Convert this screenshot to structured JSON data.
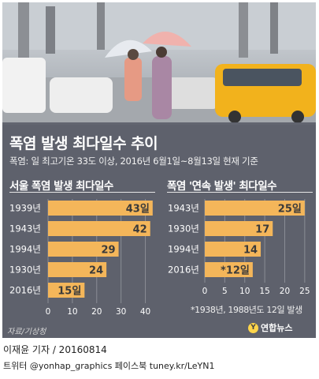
{
  "title": "폭염 발생 최다일수 추이",
  "subtitle": "폭염: 일 최고기온 33도 이상, 2016년 6월1일~8월13일 현재 기준",
  "colors": {
    "bar": "#f4b65a",
    "panel": "#5c606c",
    "text": "#ffffff",
    "logo": "#ffd54a"
  },
  "chart_data": [
    {
      "type": "bar",
      "orientation": "horizontal",
      "title": "서울 폭염 발생 최다일수",
      "categories": [
        "1939년",
        "1943년",
        "1994년",
        "1930년",
        "2016년"
      ],
      "values": [
        43,
        42,
        29,
        24,
        15
      ],
      "value_labels": [
        "43일",
        "42",
        "29",
        "24",
        "15일"
      ],
      "xlim": [
        0,
        45
      ],
      "xticks": [
        "0",
        "10",
        "20",
        "30",
        "40"
      ],
      "grid": true
    },
    {
      "type": "bar",
      "orientation": "horizontal",
      "title": "폭염 '연속 발생' 최다일수",
      "categories": [
        "1943년",
        "1930년",
        "1994년",
        "2016년"
      ],
      "values": [
        25,
        17,
        14,
        12
      ],
      "value_labels": [
        "25일",
        "17",
        "14",
        "*12일"
      ],
      "xlim": [
        0,
        27
      ],
      "xticks": [
        "0",
        "5",
        "10",
        "15",
        "20",
        "25"
      ],
      "grid": true,
      "footnote": "*1938년, 1988년도 12일 발생"
    }
  ],
  "source": "자료/기상청",
  "logo_text": "연합뉴스",
  "byline": "이재윤 기자 / 20160814",
  "social": "트위터 @yonhap_graphics  페이스북 tuney.kr/LeYN1"
}
